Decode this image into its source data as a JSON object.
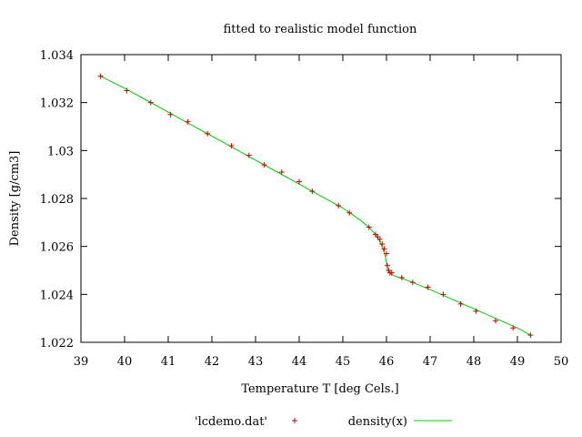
{
  "chart_data": {
    "type": "scatter",
    "title": "fitted to realistic model function",
    "xlabel": "Temperature T  [deg Cels.]",
    "ylabel": "Density [g/cm3]",
    "xlim": [
      39,
      50
    ],
    "ylim": [
      1.022,
      1.034
    ],
    "x_ticks": [
      39,
      40,
      41,
      42,
      43,
      44,
      45,
      46,
      47,
      48,
      49,
      50
    ],
    "y_ticks": [
      1.022,
      1.024,
      1.026,
      1.028,
      1.03,
      1.032,
      1.034
    ],
    "x_tick_labels": [
      "39",
      "40",
      "41",
      "42",
      "43",
      "44",
      "45",
      "46",
      "47",
      "48",
      "49",
      "50"
    ],
    "y_tick_labels": [
      "1.022",
      "1.024",
      "1.026",
      "1.028",
      "1.03",
      "1.032",
      "1.034"
    ],
    "grid": false,
    "legend_position": "bottom",
    "series": [
      {
        "name": "'lcdemo.dat'",
        "style": "points",
        "marker": "plus",
        "color": "#cc0000",
        "x": [
          39.45,
          40.05,
          40.6,
          41.05,
          41.45,
          41.9,
          42.45,
          42.85,
          43.2,
          43.6,
          44.0,
          44.3,
          44.9,
          45.15,
          45.6,
          45.75,
          45.8,
          45.85,
          45.9,
          45.95,
          46.0,
          46.02,
          46.05,
          46.08,
          46.12,
          46.35,
          46.6,
          46.95,
          47.3,
          47.7,
          48.05,
          48.5,
          48.9,
          49.3
        ],
        "y": [
          1.0331,
          1.0325,
          1.032,
          1.0315,
          1.0312,
          1.0307,
          1.0302,
          1.0298,
          1.0294,
          1.0291,
          1.0287,
          1.0283,
          1.0277,
          1.0274,
          1.0268,
          1.0265,
          1.0264,
          1.0263,
          1.0261,
          1.0259,
          1.0257,
          1.0252,
          1.025,
          1.0249,
          1.0249,
          1.0247,
          1.0245,
          1.0243,
          1.024,
          1.0236,
          1.0233,
          1.0229,
          1.0226,
          1.0223
        ]
      },
      {
        "name": "density(x)",
        "style": "line",
        "color": "#00cc00",
        "x": [
          39.45,
          40.0,
          40.5,
          41.0,
          41.5,
          42.0,
          42.5,
          43.0,
          43.5,
          44.0,
          44.5,
          45.0,
          45.4,
          45.6,
          45.75,
          45.85,
          45.92,
          45.97,
          46.0,
          46.03,
          46.07,
          46.15,
          46.3,
          46.6,
          47.0,
          47.5,
          48.0,
          48.5,
          49.0,
          49.3
        ],
        "y": [
          1.0331,
          1.0326,
          1.0321,
          1.0316,
          1.0311,
          1.0306,
          1.0301,
          1.0296,
          1.0291,
          1.0286,
          1.0281,
          1.0276,
          1.0271,
          1.0268,
          1.0265,
          1.0262,
          1.0259,
          1.0256,
          1.0253,
          1.025,
          1.0249,
          1.0248,
          1.0247,
          1.0245,
          1.0242,
          1.0238,
          1.0234,
          1.023,
          1.0226,
          1.0223
        ]
      }
    ]
  }
}
